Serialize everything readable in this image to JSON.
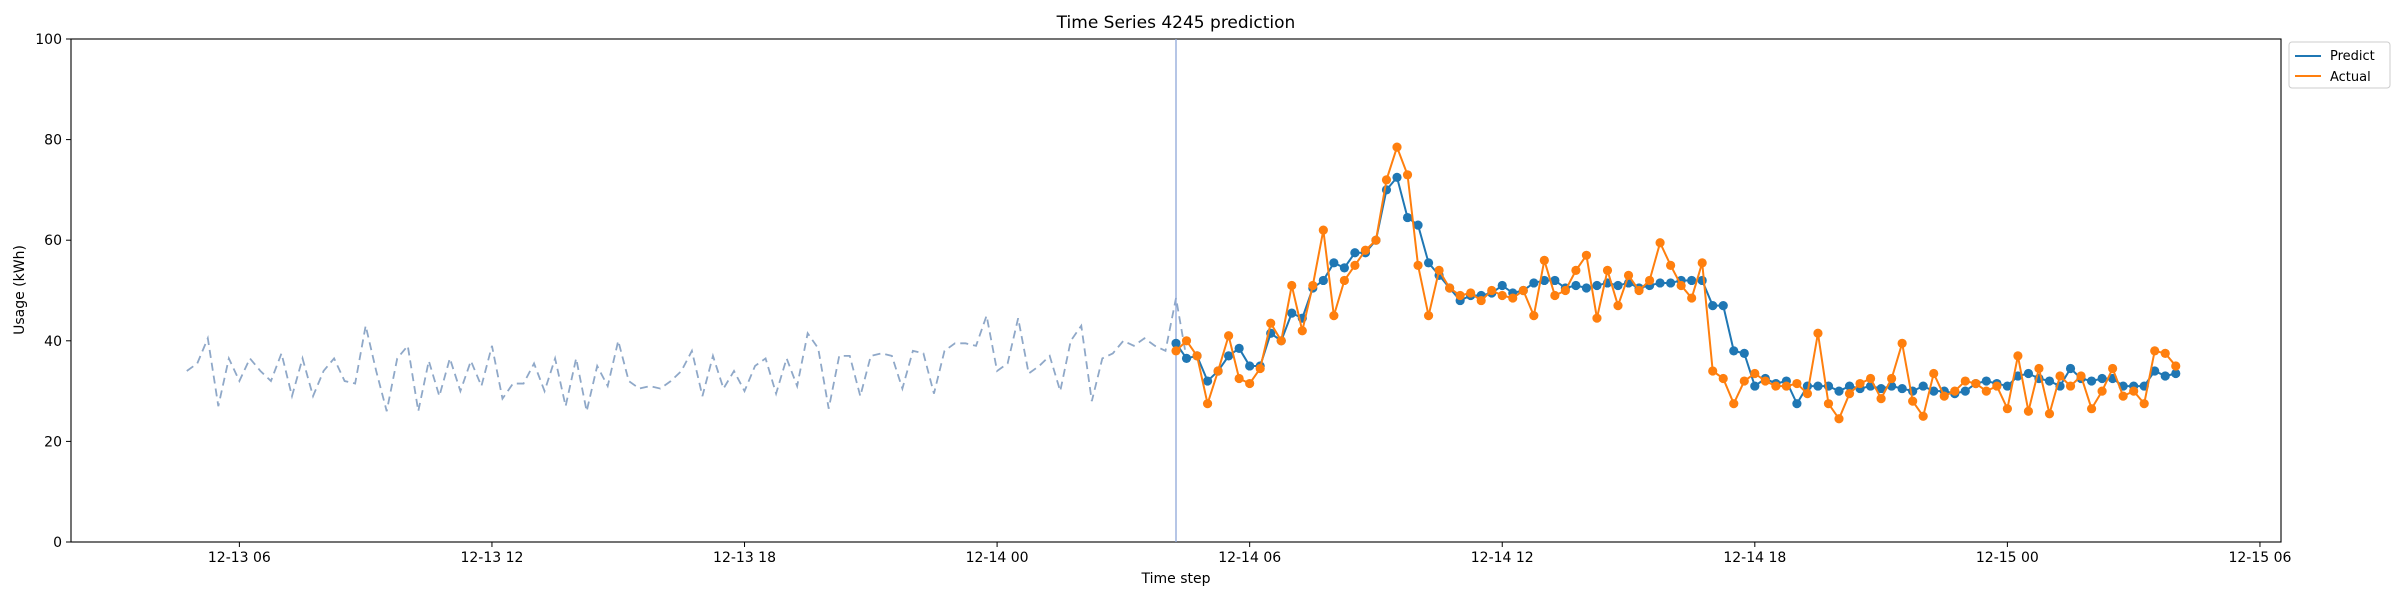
{
  "chart_data": {
    "type": "line",
    "title": "Time Series 4245 prediction",
    "xlabel": "Time step",
    "ylabel": "Usage (kWh)",
    "ylim": [
      0,
      100
    ],
    "yticks": [
      0,
      20,
      40,
      60,
      80,
      100
    ],
    "xlim": [
      "2024-12-13T02:00",
      "2024-12-15T06:30"
    ],
    "xticks": [
      {
        "t": "2024-12-13T06:00",
        "label": "12-13 06"
      },
      {
        "t": "2024-12-13T12:00",
        "label": "12-13 12"
      },
      {
        "t": "2024-12-13T18:00",
        "label": "12-13 18"
      },
      {
        "t": "2024-12-14T00:00",
        "label": "12-14 00"
      },
      {
        "t": "2024-12-14T06:00",
        "label": "12-14 06"
      },
      {
        "t": "2024-12-14T12:00",
        "label": "12-14 12"
      },
      {
        "t": "2024-12-14T18:00",
        "label": "12-14 18"
      },
      {
        "t": "2024-12-15T00:00",
        "label": "12-15 00"
      },
      {
        "t": "2024-12-15T06:00",
        "label": "12-15 06"
      }
    ],
    "grid": false,
    "legend_position": "outside-top-right",
    "split_time": "2024-12-14T04:15",
    "colors": {
      "predict": "#1f77b4",
      "actual": "#ff7f0e",
      "history": "#8fa8c8",
      "split": "#8fa8d8"
    },
    "history": {
      "start": "2024-12-13T04:45",
      "step_minutes": 15,
      "values": [
        34,
        35.5,
        40.5,
        27,
        36.5,
        32,
        36.5,
        34,
        32,
        37.5,
        29,
        36.5,
        29,
        34,
        36.5,
        32,
        31.5,
        43,
        34,
        26,
        36.5,
        39,
        26,
        36,
        29,
        36.5,
        30,
        36,
        31,
        39,
        28.5,
        31.5,
        31.5,
        35.5,
        30,
        36.5,
        27,
        36.5,
        26,
        35,
        31,
        40,
        32,
        30.5,
        31,
        30.5,
        32,
        34,
        38,
        29,
        37,
        30.5,
        34,
        30,
        35,
        36.5,
        29.5,
        36.5,
        31,
        41.5,
        38.5,
        26.5,
        37,
        37,
        29,
        37,
        37.5,
        37,
        30.5,
        38,
        37.5,
        29.5,
        38,
        39.5,
        39.5,
        39,
        45,
        34,
        35.5,
        44.5,
        33.5,
        35,
        37,
        30,
        40,
        43,
        28,
        36.5,
        37.5,
        40,
        39,
        40.5,
        39,
        38,
        48.5,
        36.5,
        37.5
      ]
    },
    "series": [
      {
        "name": "Predict",
        "start": "2024-12-14T04:15",
        "step_minutes": 15,
        "values": [
          39.5,
          36.5,
          37,
          32,
          34,
          37,
          38.5,
          35,
          35,
          41.5,
          40,
          45.5,
          44.5,
          50.5,
          52,
          55.5,
          54.5,
          57.5,
          57.5,
          60,
          70,
          72.5,
          64.5,
          63,
          55.5,
          53,
          50.5,
          48,
          49,
          49,
          49.5,
          51,
          49.5,
          50,
          51.5,
          52,
          52,
          50.5,
          51,
          50.5,
          51,
          51.5,
          51,
          51.5,
          50.5,
          51,
          51.5,
          51.5,
          52,
          52,
          52,
          47,
          47,
          38,
          37.5,
          31,
          32.5,
          31.5,
          32,
          27.5,
          31,
          31,
          31,
          30,
          31,
          30.5,
          31,
          30.5,
          31,
          30.5,
          30,
          31,
          30,
          30,
          29.5,
          30,
          31.5,
          32,
          31.5,
          31,
          33,
          33.5,
          32.5,
          32,
          31,
          34.5,
          32.5,
          32,
          32.5,
          32.5,
          31,
          31,
          31,
          34,
          33,
          33.5
        ]
      },
      {
        "name": "Actual",
        "start": "2024-12-14T04:15",
        "step_minutes": 15,
        "values": [
          38,
          40,
          37,
          27.5,
          34,
          41,
          32.5,
          31.5,
          34.5,
          43.5,
          40,
          51,
          42,
          51,
          62,
          45,
          52,
          55,
          58,
          60,
          72,
          78.5,
          73,
          55,
          45,
          54,
          50.5,
          49,
          49.5,
          48,
          50,
          49,
          48.5,
          50,
          45,
          56,
          49,
          50,
          54,
          57,
          44.5,
          54,
          47,
          53,
          50,
          52,
          59.5,
          55,
          51,
          48.5,
          55.5,
          34,
          32.5,
          27.5,
          32,
          33.5,
          32,
          31,
          31,
          31.5,
          29.5,
          41.5,
          27.5,
          24.5,
          29.5,
          31.5,
          32.5,
          28.5,
          32.5,
          39.5,
          28,
          25,
          33.5,
          29,
          30,
          32,
          31.5,
          30,
          31,
          26.5,
          37,
          26,
          34.5,
          25.5,
          33,
          31,
          33,
          26.5,
          30,
          34.5,
          29,
          30,
          27.5,
          38,
          37.5,
          35
        ]
      }
    ]
  }
}
